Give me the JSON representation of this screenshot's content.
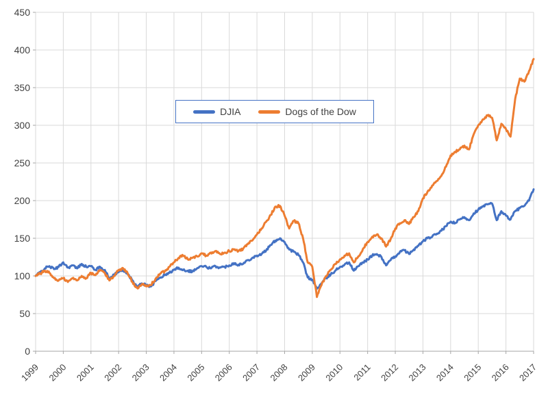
{
  "chart_data": {
    "type": "line",
    "title": "",
    "xlabel": "",
    "ylabel": "",
    "x_axis": {
      "tick_labels": [
        "1999",
        "2000",
        "2001",
        "2002",
        "2003",
        "2004",
        "2005",
        "2006",
        "2007",
        "2008",
        "2009",
        "2010",
        "2011",
        "2012",
        "2013",
        "2014",
        "2015",
        "2016",
        "2017"
      ],
      "min": 1999,
      "max": 2017
    },
    "y_axis": {
      "ticks": [
        0,
        50,
        100,
        150,
        200,
        250,
        300,
        350,
        400,
        450
      ],
      "min": 0,
      "max": 450
    },
    "grid": true,
    "legend_position": "top-center-inside",
    "points_per_year": 6,
    "series": [
      {
        "name": "DJIA",
        "color": "#4472C4",
        "values": [
          100,
          105,
          110,
          113,
          109,
          112,
          118,
          111,
          114,
          110,
          116,
          112,
          113,
          108,
          112,
          108,
          96,
          102,
          105,
          108,
          102,
          94,
          85,
          90,
          88,
          86,
          93,
          98,
          101,
          104,
          108,
          111,
          108,
          107,
          106,
          110,
          113,
          112,
          110,
          113,
          111,
          112,
          114,
          117,
          115,
          116,
          121,
          124,
          127,
          129,
          134,
          141,
          147,
          150,
          145,
          135,
          132,
          128,
          118,
          98,
          95,
          83,
          90,
          97,
          102,
          107,
          112,
          115,
          118,
          107,
          113,
          118,
          122,
          127,
          129,
          125,
          114,
          121,
          126,
          132,
          134,
          129,
          135,
          140,
          146,
          150,
          152,
          156,
          160,
          166,
          172,
          170,
          175,
          178,
          174,
          183,
          188,
          192,
          195,
          196,
          174,
          186,
          180,
          175,
          186,
          190,
          193,
          200,
          215
        ]
      },
      {
        "name": "Dogs of the Dow",
        "color": "#ED7D31",
        "values": [
          100,
          103,
          107,
          104,
          97,
          94,
          97,
          92,
          97,
          94,
          100,
          97,
          104,
          101,
          108,
          104,
          94,
          100,
          108,
          110,
          103,
          92,
          84,
          89,
          86,
          88,
          96,
          103,
          106,
          112,
          118,
          124,
          127,
          122,
          124,
          126,
          130,
          127,
          131,
          133,
          129,
          131,
          133,
          135,
          133,
          136,
          142,
          147,
          155,
          163,
          172,
          181,
          192,
          193,
          180,
          163,
          173,
          170,
          150,
          118,
          112,
          72,
          88,
          100,
          108,
          116,
          122,
          127,
          130,
          118,
          126,
          136,
          145,
          152,
          155,
          150,
          139,
          149,
          163,
          170,
          174,
          169,
          178,
          186,
          203,
          212,
          220,
          226,
          233,
          245,
          260,
          265,
          268,
          273,
          268,
          288,
          300,
          308,
          313,
          310,
          280,
          302,
          295,
          285,
          335,
          362,
          358,
          372,
          388
        ]
      }
    ],
    "colors": {
      "gridline": "#D9D9D9",
      "axis_line": "#A6A6A6",
      "tick_label": "#404040",
      "legend_border": "#4472C4",
      "background": "#FFFFFF"
    }
  }
}
